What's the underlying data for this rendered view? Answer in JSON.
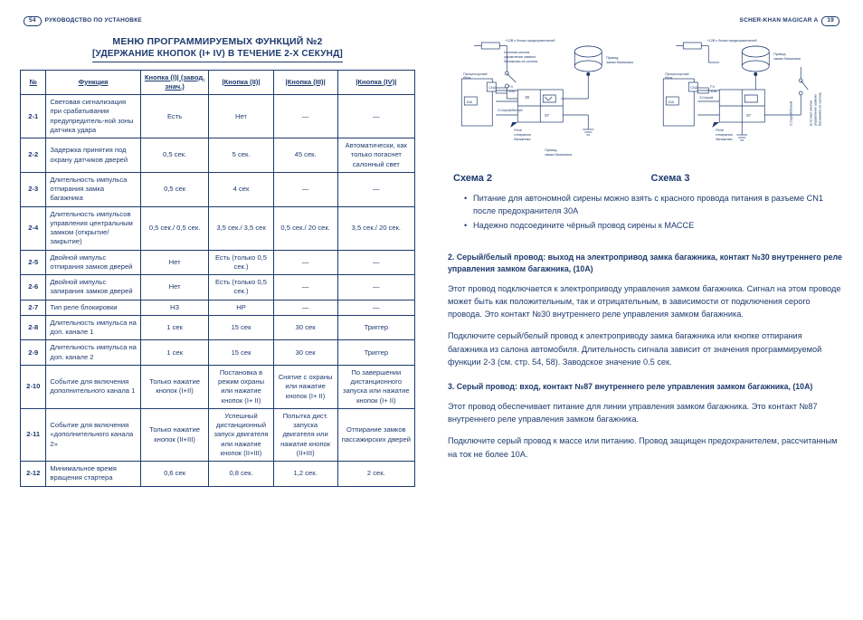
{
  "header_left": {
    "page": "54",
    "text": "РУКОВОДСТВО ПО УСТАНОВКЕ"
  },
  "header_right": {
    "text": "SCHER-KHAN MAGICAR A",
    "page": "19"
  },
  "title": {
    "line1": "МЕНЮ ПРОГРАММИРУЕМЫХ ФУНКЦИЙ №2",
    "line2": "[УДЕРЖАНИЕ КНОПОК (I+ IV) В ТЕЧЕНИЕ 2-Х СЕКУНД]"
  },
  "table": {
    "head": [
      "№",
      "Функция",
      "Кнопка (I)| (завод. знач.)",
      "|Кнопка (II)|",
      "|Кнопка (III)|",
      "|Кнопка (IV)|"
    ],
    "rows": [
      [
        "2-1",
        "Световая сигнализация при срабатывании предупредитель-ной зоны датчика удара",
        "Есть",
        "Нет",
        "—",
        "—"
      ],
      [
        "2-2",
        "Задержка принятия под охрану датчиков дверей",
        "0,5 сек.",
        "5 сек.",
        "45 сек.",
        "Автоматически, как только погаснет салонный свет"
      ],
      [
        "2-3",
        "Длительность импульса отпирания замка багажника",
        "0,5 сек",
        "4 сек",
        "—",
        "—"
      ],
      [
        "2-4",
        "Длительность импульсов управления центральным замком (открытие/закрытие)",
        "0,5 сек./ 0,5 сек.",
        "3,5 сек./ 3,5 сек",
        "0,5 сек./ 20 сек.",
        "3,5 сек./ 20 сек."
      ],
      [
        "2-5",
        "Двойной импульс отпирания замков дверей",
        "Нет",
        "Есть (только 0,5 сек.)",
        "—",
        "—"
      ],
      [
        "2-6",
        "Двойной импульс запирания замков дверей",
        "Нет",
        "Есть (только 0,5 сек.)",
        "—",
        "—"
      ],
      [
        "2-7",
        "Тип реле блокировки",
        "НЗ",
        "НР",
        "—",
        "—"
      ],
      [
        "2-8",
        "Длительность импульса на доп. канале 1",
        "1 сек",
        "15 сек",
        "30 сек",
        "Триггер"
      ],
      [
        "2-9",
        "Длительность импульса на доп. канале 2",
        "1 сек",
        "15 сек",
        "30 сек",
        "Триггер"
      ],
      [
        "2-10",
        "Событие для включения дополнительного канала 1",
        "Только нажатие кнопок (I+II)",
        "Постановка в режим охраны или нажатие кнопок (I+ II)",
        "Снятие с охраны или нажатие кнопок (I+ II)",
        "По завершении дистанционного запуска или нажатие кнопок (I+ II)"
      ],
      [
        "2-11",
        "Событие для включения «дополнительного канала 2»",
        "Только нажатие кнопок (II+III)",
        "Успешный дистанционный запуск двигателя или нажатие кнопок (II+III)",
        "Попытка дист. запуска двигателя или нажатие кнопок (II+III)",
        "Отпирание замков пассажирских дверей"
      ],
      [
        "2-12",
        "Минимальное время вращения стартера",
        "0,6 сек",
        "0,8 сек.",
        "1,2 сек.",
        "2 сек."
      ]
    ]
  },
  "schemes": {
    "s2": {
      "label": "Схема 2"
    },
    "s3": {
      "label": "Схема 3"
    }
  },
  "diagram_labels": {
    "fuse_top": "+12В с блока предохранителей",
    "button": "Штатная кнопка управления замком багажника из салона",
    "trunk_drive": "Привод замка багажника",
    "cn2": "CN2",
    "proc": "Процессорный блок",
    "f4": "F4 10A",
    "ten_a": "10A",
    "thirty": "30",
    "eighty7": "87",
    "relay": "Реле отпирания багажника",
    "wire_a": "3:Серый",
    "wire_b": "2:Серый/белый",
    "trunk_lock": "Привод замка багажника"
  },
  "bullets": [
    "Питание для автономной сирены можно взять с красного провода питания в разъеме CN1 после предохранителя 30А",
    "Надежно подсоедините чёрный провод сирены к МАССЕ"
  ],
  "sec2": {
    "h": "2. Серый/белый провод: выход на электропривод замка багажника, контакт №30 внутреннего реле управления замком багажника, (10А)",
    "p1": "Этот провод подключается к электроприводу управления замком багажника. Сигнал на этом проводе может быть как положительным, так и отрицательным, в зависимости от подключения серого провода. Это контакт №30 внутреннего реле управления замком багажника.",
    "p2": "Подключите серый/белый провод к электроприводу замка багажника или кнопке отпирания багажника из салона автомобиля. Длительность сигнала зависит от значения программируемой функции 2-3 (см. стр. 54, 58). Заводское значение 0.5 сек."
  },
  "sec3": {
    "h": "3. Серый провод: вход, контакт №87 внутреннего реле управления замком багажника, (10А)",
    "p1": "Этот провод обеспечивает питание для линии управления замком багажника. Это контакт №87 внутреннего реле управления замком багажника.",
    "p2": "Подключите серый провод к массе или питанию. Провод защищен предохранителем, рассчитанным на ток не более 10А."
  },
  "colors": {
    "ink": "#1e3a6e"
  }
}
